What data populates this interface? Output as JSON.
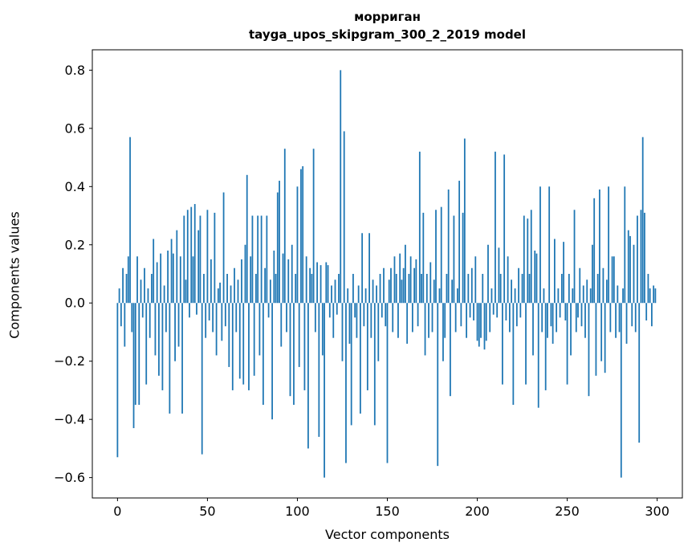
{
  "chart_data": {
    "type": "bar",
    "title_line1": "морриган",
    "title_line2": "tayga_upos_skipgram_300_2_2019 model",
    "xlabel": "Vector components",
    "ylabel": "Components values",
    "bar_color": "#1f77b4",
    "xlim": [
      -14,
      314
    ],
    "ylim": [
      -0.67,
      0.87
    ],
    "x_ticks": [
      0,
      50,
      100,
      150,
      200,
      250,
      300
    ],
    "y_ticks": [
      -0.6,
      -0.4,
      -0.2,
      0.0,
      0.2,
      0.4,
      0.6,
      0.8
    ],
    "grid": false,
    "legend": "none",
    "values": [
      -0.53,
      0.05,
      -0.08,
      0.12,
      -0.15,
      0.1,
      0.16,
      0.57,
      -0.1,
      -0.43,
      -0.35,
      0.16,
      -0.35,
      0.08,
      -0.05,
      0.12,
      -0.28,
      0.05,
      -0.12,
      0.1,
      0.22,
      -0.18,
      0.14,
      -0.25,
      0.17,
      -0.3,
      0.06,
      -0.1,
      0.18,
      -0.38,
      0.22,
      0.17,
      -0.2,
      0.25,
      -0.15,
      0.16,
      -0.38,
      0.3,
      0.08,
      0.32,
      -0.05,
      0.33,
      0.16,
      0.34,
      -0.04,
      0.25,
      0.3,
      -0.52,
      0.1,
      -0.12,
      0.32,
      -0.06,
      0.15,
      -0.1,
      0.31,
      -0.18,
      0.05,
      0.07,
      -0.13,
      0.38,
      -0.08,
      0.1,
      -0.22,
      0.06,
      -0.3,
      0.12,
      -0.1,
      0.08,
      -0.26,
      0.15,
      -0.28,
      0.2,
      0.44,
      -0.3,
      0.16,
      0.3,
      -0.25,
      0.1,
      0.3,
      -0.18,
      0.3,
      -0.35,
      0.12,
      0.3,
      -0.05,
      0.08,
      -0.4,
      0.18,
      0.1,
      0.38,
      0.42,
      -0.15,
      0.17,
      0.53,
      -0.1,
      0.15,
      -0.32,
      0.2,
      -0.35,
      0.1,
      0.4,
      -0.22,
      0.46,
      0.47,
      -0.3,
      0.16,
      -0.5,
      0.12,
      0.1,
      0.53,
      -0.1,
      0.14,
      -0.46,
      0.13,
      -0.18,
      -0.6,
      0.14,
      0.13,
      -0.05,
      0.06,
      -0.12,
      0.08,
      -0.04,
      0.1,
      0.8,
      -0.2,
      0.59,
      -0.55,
      0.05,
      -0.14,
      -0.42,
      0.1,
      -0.05,
      -0.12,
      0.06,
      -0.38,
      0.24,
      -0.08,
      0.05,
      -0.3,
      0.24,
      -0.12,
      0.08,
      -0.42,
      0.06,
      -0.2,
      0.1,
      -0.05,
      0.12,
      -0.08,
      -0.55,
      0.08,
      0.12,
      -0.1,
      0.16,
      0.1,
      -0.12,
      0.17,
      0.08,
      0.12,
      0.2,
      -0.14,
      0.1,
      0.16,
      -0.1,
      0.12,
      0.15,
      -0.08,
      0.52,
      0.1,
      0.31,
      -0.18,
      0.1,
      -0.12,
      0.14,
      -0.1,
      0.08,
      0.32,
      -0.56,
      0.05,
      0.33,
      -0.2,
      -0.12,
      0.1,
      0.39,
      -0.32,
      0.08,
      0.3,
      -0.1,
      0.05,
      0.42,
      -0.08,
      0.31,
      0.565,
      -0.12,
      0.1,
      -0.05,
      0.12,
      -0.06,
      0.16,
      -0.13,
      -0.15,
      -0.12,
      0.1,
      -0.16,
      -0.13,
      0.2,
      -0.1,
      0.05,
      -0.04,
      0.52,
      -0.05,
      0.19,
      0.1,
      -0.28,
      0.51,
      -0.06,
      0.16,
      -0.1,
      0.08,
      -0.35,
      0.05,
      -0.08,
      0.12,
      -0.05,
      0.1,
      0.3,
      -0.28,
      0.29,
      0.1,
      0.32,
      -0.18,
      0.18,
      0.17,
      -0.36,
      0.4,
      -0.1,
      0.05,
      -0.3,
      -0.12,
      0.4,
      -0.08,
      -0.14,
      0.22,
      -0.1,
      0.05,
      -0.05,
      0.1,
      0.21,
      -0.06,
      -0.28,
      0.1,
      -0.18,
      0.05,
      0.32,
      -0.1,
      -0.05,
      0.12,
      -0.08,
      0.06,
      -0.12,
      0.08,
      -0.32,
      0.05,
      0.2,
      0.36,
      -0.25,
      0.1,
      0.39,
      -0.2,
      0.12,
      -0.24,
      0.08,
      0.4,
      -0.1,
      0.16,
      0.16,
      -0.12,
      0.06,
      -0.1,
      -0.6,
      0.05,
      0.4,
      -0.14,
      0.25,
      0.23,
      -0.08,
      0.2,
      -0.1,
      0.3,
      -0.48,
      0.32,
      0.57,
      0.31,
      -0.06,
      0.1,
      0.05,
      -0.08,
      0.06,
      0.05
    ]
  }
}
